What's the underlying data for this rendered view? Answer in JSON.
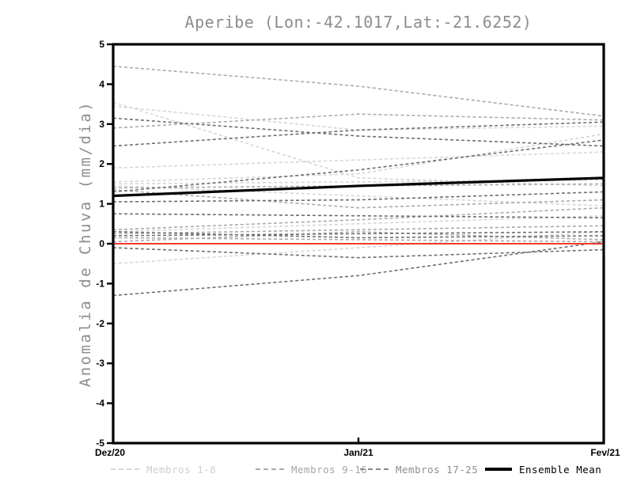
{
  "title": "Aperibe (Lon:-42.1017,Lat:-21.6252)",
  "legend": {
    "items": [
      {
        "label": "Membros 1-8",
        "color": "#d6d6d6",
        "text_color": "#cfcfcf",
        "style": "dashed"
      },
      {
        "label": "Membros 9-16",
        "color": "#ababab",
        "text_color": "#a6a6a6",
        "style": "dashed"
      },
      {
        "label": "Membros 17-25",
        "color": "#8a8a8a",
        "text_color": "#8d8d8d",
        "style": "dashed"
      },
      {
        "label": "Ensemble Mean",
        "color": "#000000",
        "text_color": "#000000",
        "style": "solid"
      }
    ]
  },
  "chart_data": {
    "type": "line",
    "title": "Aperibe (Lon:-42.1017,Lat:-21.6252)",
    "xlabel": "",
    "ylabel": "Anomalia de Chuva (mm/dia)",
    "x_tick_labels": [
      "Dez/20",
      "Jan/21",
      "Fev/21"
    ],
    "y_ticks": [
      5,
      4,
      3,
      2,
      1,
      0,
      -1,
      -2,
      -3,
      -4,
      -5
    ],
    "ylim": [
      -5,
      5
    ],
    "grid": false,
    "legend_position": "bottom",
    "line_style_members": "dashed",
    "reference_line": {
      "name": "zero-line",
      "value": 0,
      "color": "#f03a2e",
      "width": 2
    },
    "ensemble_mean": {
      "name": "Ensemble Mean",
      "color": "#000000",
      "width": 3.2,
      "values": [
        1.2,
        1.45,
        1.65
      ]
    },
    "groups": [
      {
        "name": "Membros 1-8",
        "color": "#d6d6d6",
        "members": [
          {
            "values": [
              3.55,
              1.65,
              1.45
            ]
          },
          {
            "values": [
              3.45,
              2.85,
              2.95
            ]
          },
          {
            "values": [
              1.9,
              2.1,
              2.3
            ]
          },
          {
            "values": [
              1.55,
              1.75,
              2.75
            ]
          },
          {
            "values": [
              1.5,
              1.55,
              1.6
            ]
          },
          {
            "values": [
              1.45,
              1.2,
              0.95
            ]
          },
          {
            "values": [
              0.3,
              0.5,
              0.7
            ]
          },
          {
            "values": [
              -0.5,
              -0.1,
              0.3
            ]
          }
        ]
      },
      {
        "name": "Membros 9-16",
        "color": "#ababab",
        "members": [
          {
            "values": [
              4.45,
              3.95,
              3.2
            ]
          },
          {
            "values": [
              2.9,
              3.25,
              3.1
            ]
          },
          {
            "values": [
              1.4,
              1.45,
              1.5
            ]
          },
          {
            "values": [
              1.35,
              0.9,
              1.1
            ]
          },
          {
            "values": [
              0.35,
              0.6,
              0.9
            ]
          },
          {
            "values": [
              0.25,
              0.35,
              0.45
            ]
          },
          {
            "values": [
              0.15,
              0.1,
              0.05
            ]
          },
          {
            "values": [
              0.05,
              0.3,
              0.1
            ]
          }
        ]
      },
      {
        "name": "Membros 17-25",
        "color": "#6f6f6f",
        "members": [
          {
            "values": [
              3.15,
              2.7,
              2.45
            ]
          },
          {
            "values": [
              2.45,
              2.85,
              3.05
            ]
          },
          {
            "values": [
              1.3,
              1.85,
              2.6
            ]
          },
          {
            "values": [
              1.05,
              1.1,
              1.3
            ]
          },
          {
            "values": [
              0.75,
              0.7,
              0.65
            ]
          },
          {
            "values": [
              0.3,
              0.15,
              0.2
            ]
          },
          {
            "values": [
              0.2,
              0.25,
              0.3
            ]
          },
          {
            "values": [
              -0.1,
              -0.35,
              -0.15
            ]
          },
          {
            "values": [
              -1.3,
              -0.8,
              0.05
            ]
          }
        ]
      }
    ]
  }
}
